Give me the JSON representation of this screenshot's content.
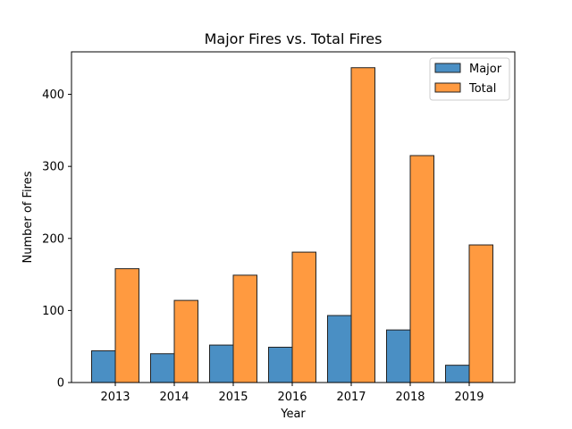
{
  "chart_data": {
    "type": "bar",
    "title": "Major Fires vs. Total Fires",
    "xlabel": "Year",
    "ylabel": "Number of Fires",
    "categories": [
      "2013",
      "2014",
      "2015",
      "2016",
      "2017",
      "2018",
      "2019"
    ],
    "series": [
      {
        "name": "Major",
        "color": "#4a8fc4",
        "values": [
          44,
          40,
          52,
          49,
          93,
          73,
          24
        ]
      },
      {
        "name": "Total",
        "color": "#ff9a40",
        "values": [
          158,
          114,
          149,
          181,
          437,
          315,
          191
        ]
      }
    ],
    "ylim": [
      0,
      459
    ],
    "yticks": [
      "0",
      "100",
      "200",
      "300",
      "400"
    ],
    "grid": false,
    "legend_position": "top-right"
  }
}
